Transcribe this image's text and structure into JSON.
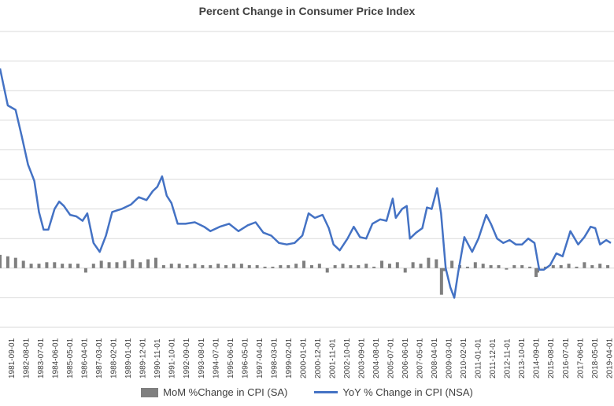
{
  "chart_data": {
    "type": "line",
    "title": "Percent Change in Consumer Price Index",
    "xlabel": "",
    "ylabel": "",
    "ylim": [
      -4,
      16
    ],
    "grid": true,
    "legend_position": "bottom",
    "colors": {
      "mom": "#7f7f7f",
      "yoy": "#4472c4",
      "grid": "#d9d9d9",
      "text": "#404040"
    },
    "categories": [
      "1981-09-01",
      "1982-08-01",
      "1983-07-01",
      "1984-06-01",
      "1985-05-01",
      "1986-04-01",
      "1987-03-01",
      "1988-02-01",
      "1989-01-01",
      "1989-12-01",
      "1990-11-01",
      "1991-10-01",
      "1992-09-01",
      "1993-08-01",
      "1994-07-01",
      "1995-06-01",
      "1996-05-01",
      "1997-04-01",
      "1998-03-01",
      "1999-02-01",
      "2000-01-01",
      "2000-12-01",
      "2001-11-01",
      "2002-10-01",
      "2003-09-01",
      "2004-08-01",
      "2005-07-01",
      "2006-06-01",
      "2007-05-01",
      "2008-04-01",
      "2009-03-01",
      "2010-02-01",
      "2011-01-01",
      "2011-12-01",
      "2012-11-01",
      "2013-10-01",
      "2014-09-01",
      "2015-08-01",
      "2016-07-01",
      "2017-06-01",
      "2018-05-01",
      "2019-04-01"
    ],
    "series": [
      {
        "name": "MoM %Change in CPI (SA)",
        "kind": "bar",
        "x": [
          1980.5,
          1981,
          1981.5,
          1982,
          1982.5,
          1983,
          1983.5,
          1984,
          1984.5,
          1985,
          1985.5,
          1986,
          1986.5,
          1987,
          1987.5,
          1988,
          1988.5,
          1989,
          1989.5,
          1990,
          1990.5,
          1991,
          1991.5,
          1992,
          1992.5,
          1993,
          1993.5,
          1994,
          1994.5,
          1995,
          1995.5,
          1996,
          1996.5,
          1997,
          1997.5,
          1998,
          1998.5,
          1999,
          1999.5,
          2000,
          2000.5,
          2001,
          2001.5,
          2002,
          2002.5,
          2003,
          2003.5,
          2004,
          2004.5,
          2005,
          2005.5,
          2006,
          2006.5,
          2007,
          2007.5,
          2008,
          2008.5,
          2008.83,
          2009,
          2009.5,
          2010,
          2010.5,
          2011,
          2011.5,
          2012,
          2012.5,
          2013,
          2013.5,
          2014,
          2014.5,
          2014.9,
          2015,
          2015.5,
          2016,
          2016.5,
          2017,
          2017.5,
          2018,
          2018.5,
          2019,
          2019.5
        ],
        "values": [
          0.9,
          0.8,
          0.7,
          0.5,
          0.3,
          0.3,
          0.4,
          0.4,
          0.3,
          0.3,
          0.3,
          -0.3,
          0.3,
          0.5,
          0.4,
          0.4,
          0.5,
          0.6,
          0.4,
          0.6,
          0.7,
          0.2,
          0.3,
          0.3,
          0.2,
          0.3,
          0.2,
          0.2,
          0.3,
          0.2,
          0.3,
          0.3,
          0.2,
          0.2,
          0.1,
          0.1,
          0.2,
          0.2,
          0.3,
          0.5,
          0.2,
          0.3,
          -0.3,
          0.2,
          0.3,
          0.2,
          0.2,
          0.3,
          0.1,
          0.5,
          0.3,
          0.4,
          -0.3,
          0.4,
          0.3,
          0.7,
          0.6,
          -1.8,
          -0.2,
          0.5,
          0.2,
          0.1,
          0.4,
          0.3,
          0.2,
          0.2,
          -0.1,
          0.2,
          0.2,
          0.1,
          -0.6,
          -0.3,
          0.1,
          0.2,
          0.2,
          0.3,
          0.1,
          0.4,
          0.2,
          0.3,
          0.2
        ]
      },
      {
        "name": "YoY % Change in CPI (NSA)",
        "kind": "line",
        "x": [
          1980.5,
          1981,
          1981.5,
          1981.9,
          1982.3,
          1982.7,
          1983,
          1983.3,
          1983.6,
          1984,
          1984.3,
          1984.6,
          1985,
          1985.4,
          1985.8,
          1986.1,
          1986.5,
          1986.9,
          1987.3,
          1987.7,
          1988.3,
          1988.9,
          1989.4,
          1989.9,
          1990.3,
          1990.6,
          1990.9,
          1991.2,
          1991.5,
          1991.9,
          1992.4,
          1993,
          1993.6,
          1994,
          1994.6,
          1995.2,
          1995.8,
          1996.4,
          1996.9,
          1997.4,
          1997.9,
          1998.4,
          1998.9,
          1999.4,
          1999.9,
          2000.3,
          2000.7,
          2001.2,
          2001.6,
          2001.9,
          2002.3,
          2002.8,
          2003.2,
          2003.6,
          2004,
          2004.4,
          2004.9,
          2005.3,
          2005.7,
          2005.9,
          2006.3,
          2006.6,
          2006.8,
          2007.2,
          2007.6,
          2007.9,
          2008.2,
          2008.55,
          2008.8,
          2009.1,
          2009.4,
          2009.65,
          2009.9,
          2010.3,
          2010.8,
          2011.2,
          2011.7,
          2012,
          2012.4,
          2012.8,
          2013.2,
          2013.6,
          2014,
          2014.4,
          2014.8,
          2015.1,
          2015.4,
          2015.8,
          2016.2,
          2016.6,
          2017.1,
          2017.6,
          2018,
          2018.4,
          2018.7,
          2019,
          2019.4,
          2019.7
        ],
        "values": [
          13.5,
          11.0,
          10.7,
          8.9,
          7.0,
          5.9,
          3.8,
          2.6,
          2.6,
          4.0,
          4.5,
          4.2,
          3.6,
          3.5,
          3.2,
          3.7,
          1.7,
          1.1,
          2.2,
          3.8,
          4.0,
          4.3,
          4.8,
          4.6,
          5.2,
          5.5,
          6.2,
          4.9,
          4.4,
          3.0,
          3.0,
          3.1,
          2.8,
          2.5,
          2.8,
          3.0,
          2.5,
          2.9,
          3.1,
          2.4,
          2.2,
          1.7,
          1.6,
          1.7,
          2.2,
          3.7,
          3.4,
          3.6,
          2.7,
          1.6,
          1.2,
          2.0,
          2.8,
          2.1,
          2.0,
          3.0,
          3.3,
          3.2,
          4.7,
          3.4,
          4.0,
          4.2,
          2.0,
          2.4,
          2.7,
          4.1,
          4.0,
          5.4,
          3.7,
          0.0,
          -1.3,
          -2.0,
          -0.3,
          2.1,
          1.1,
          2.0,
          3.6,
          3.0,
          2.0,
          1.7,
          1.9,
          1.6,
          1.6,
          2.0,
          1.7,
          -0.1,
          -0.1,
          0.2,
          1.0,
          0.8,
          2.5,
          1.6,
          2.1,
          2.8,
          2.7,
          1.6,
          1.9,
          1.7
        ]
      }
    ]
  },
  "legend": {
    "mom_label": "MoM %Change in CPI (SA)",
    "yoy_label": "YoY % Change in CPI (NSA)"
  }
}
